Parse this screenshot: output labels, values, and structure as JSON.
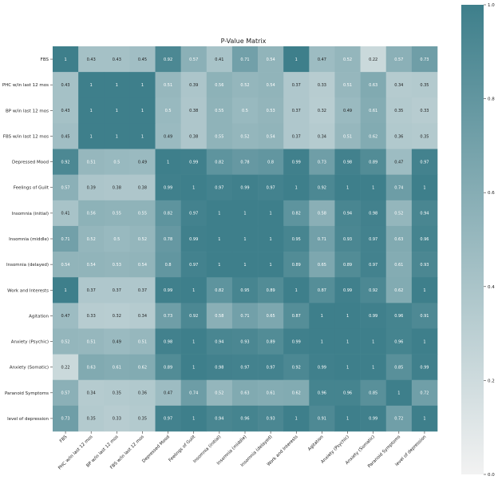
{
  "chart_data": {
    "type": "heatmap",
    "title": "P-Value Matrix",
    "labels": [
      "FBS",
      "PHC w/in last 12 mos",
      "BP w/in last 12 mos",
      "FBS w/in last 12 mos",
      "Depressed Mood",
      "Feelings of Guilt",
      "Insomnia (initial)",
      "Insomnia (middle)",
      "Insomnia (delayed)",
      "Work and Interests",
      "Agitation",
      "Anxiety (Psychic)",
      "Anxiety (Somatic)",
      "Paranoid Symptoms",
      "level of depression"
    ],
    "matrix": [
      [
        1,
        0.43,
        0.43,
        0.45,
        0.92,
        0.57,
        0.41,
        0.71,
        0.54,
        1,
        0.47,
        0.52,
        0.22,
        0.57,
        0.73
      ],
      [
        0.43,
        1,
        1,
        1,
        0.51,
        0.39,
        0.56,
        0.52,
        0.54,
        0.37,
        0.33,
        0.51,
        0.63,
        0.34,
        0.35
      ],
      [
        0.43,
        1,
        1,
        1,
        0.5,
        0.38,
        0.55,
        0.5,
        0.53,
        0.37,
        0.32,
        0.49,
        0.61,
        0.35,
        0.33
      ],
      [
        0.45,
        1,
        1,
        1,
        0.49,
        0.38,
        0.55,
        0.52,
        0.54,
        0.37,
        0.34,
        0.51,
        0.62,
        0.36,
        0.35
      ],
      [
        0.92,
        0.51,
        0.5,
        0.49,
        1,
        0.99,
        0.82,
        0.78,
        0.8,
        0.99,
        0.73,
        0.98,
        0.89,
        0.47,
        0.97
      ],
      [
        0.57,
        0.39,
        0.38,
        0.38,
        0.99,
        1,
        0.97,
        0.99,
        0.97,
        1,
        0.92,
        1,
        1,
        0.74,
        1
      ],
      [
        0.41,
        0.56,
        0.55,
        0.55,
        0.82,
        0.97,
        1,
        1,
        1,
        0.82,
        0.58,
        0.94,
        0.98,
        0.52,
        0.94
      ],
      [
        0.71,
        0.52,
        0.5,
        0.52,
        0.78,
        0.99,
        1,
        1,
        1,
        0.95,
        0.71,
        0.93,
        0.97,
        0.63,
        0.96
      ],
      [
        0.54,
        0.54,
        0.53,
        0.54,
        0.8,
        0.97,
        1,
        1,
        1,
        0.89,
        0.65,
        0.89,
        0.97,
        0.61,
        0.93
      ],
      [
        1,
        0.37,
        0.37,
        0.37,
        0.99,
        1,
        0.82,
        0.95,
        0.89,
        1,
        0.87,
        0.99,
        0.92,
        0.62,
        1
      ],
      [
        0.47,
        0.33,
        0.32,
        0.34,
        0.73,
        0.92,
        0.58,
        0.71,
        0.65,
        0.87,
        1,
        1,
        0.99,
        0.96,
        0.91
      ],
      [
        0.52,
        0.51,
        0.49,
        0.51,
        0.98,
        1,
        0.94,
        0.93,
        0.89,
        0.99,
        1,
        1,
        1,
        0.96,
        1
      ],
      [
        0.22,
        0.63,
        0.61,
        0.62,
        0.89,
        1,
        0.98,
        0.97,
        0.97,
        0.92,
        0.99,
        1,
        1,
        0.85,
        0.99
      ],
      [
        0.57,
        0.34,
        0.35,
        0.36,
        0.47,
        0.74,
        0.52,
        0.63,
        0.61,
        0.62,
        0.96,
        0.96,
        0.85,
        1,
        0.72
      ],
      [
        0.73,
        0.35,
        0.33,
        0.35,
        0.97,
        1,
        0.94,
        0.96,
        0.93,
        1,
        0.91,
        1,
        0.99,
        0.72,
        1
      ]
    ],
    "vmin": 0,
    "vmax": 1,
    "colorbar_ticks": [
      0.0,
      0.2,
      0.4,
      0.6,
      0.8,
      1.0
    ],
    "colorbar_tick_labels": [
      "0.0",
      "0.2",
      "0.4",
      "0.6",
      "0.8",
      "1.0"
    ],
    "colormap": {
      "low": "#f2f2f2",
      "high": "#3e7f8b"
    },
    "annotated": true
  }
}
